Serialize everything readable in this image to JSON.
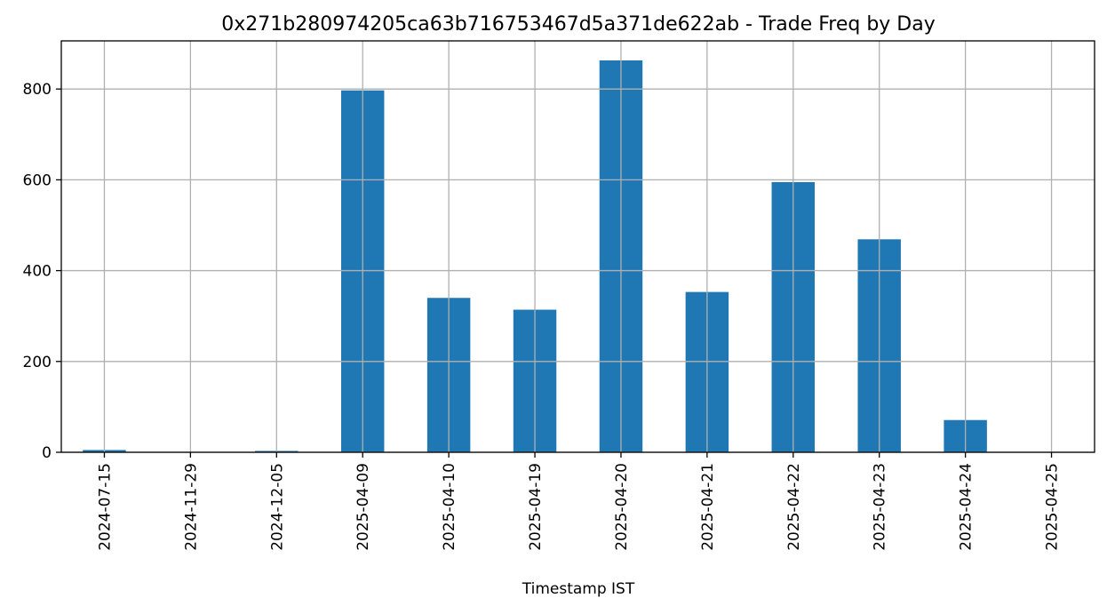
{
  "chart_data": {
    "type": "bar",
    "title": "0x271b280974205ca63b716753467d5a371de622ab - Trade Freq by Day",
    "xlabel": "Timestamp IST",
    "ylabel": "",
    "categories": [
      "2024-07-15",
      "2024-11-29",
      "2024-12-05",
      "2025-04-09",
      "2025-04-10",
      "2025-04-19",
      "2025-04-20",
      "2025-04-21",
      "2025-04-22",
      "2025-04-23",
      "2025-04-24",
      "2025-04-25"
    ],
    "values": [
      5,
      1,
      3,
      797,
      340,
      314,
      863,
      353,
      595,
      469,
      71,
      1
    ],
    "ylim": [
      0,
      906
    ],
    "yticks": [
      0,
      200,
      400,
      600,
      800
    ],
    "grid": true,
    "legend": "none",
    "bar_color": "#1f77b4",
    "grid_color": "#b0b0b0"
  }
}
